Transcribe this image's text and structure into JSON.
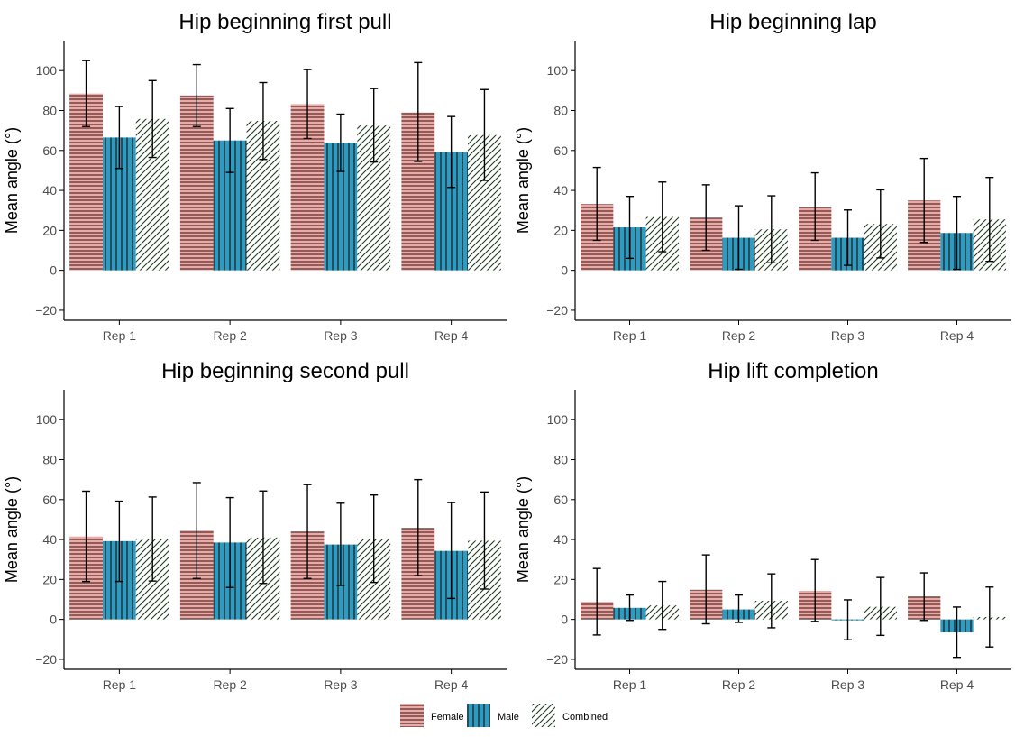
{
  "colors": {
    "female": "#f4a6a3",
    "male": "#2f9bc1",
    "combined": "#ffffff",
    "hatch": "#1a1a1a",
    "combined_hatch": "#1f3d1f",
    "axis": "#000000",
    "tick_label": "#4d4d4d"
  },
  "legend": {
    "placement": "bottom",
    "items": [
      {
        "key": "female",
        "label": "Female",
        "pattern": "horizontal-lines"
      },
      {
        "key": "male",
        "label": "Male",
        "pattern": "vertical-lines"
      },
      {
        "key": "combined",
        "label": "Combined",
        "pattern": "diagonal-lines"
      }
    ]
  },
  "chart_data": [
    {
      "type": "bar",
      "title": "Hip beginning first pull",
      "ylabel": "Mean angle (°)",
      "ylim": [
        -25,
        115
      ],
      "yticks": [
        -20,
        0,
        20,
        40,
        60,
        80,
        100
      ],
      "categories": [
        "Rep 1",
        "Rep 2",
        "Rep 3",
        "Rep 4"
      ],
      "series": [
        {
          "key": "female",
          "values": [
            88.5,
            87.5,
            83.2,
            79.0
          ],
          "error_low": [
            72,
            72,
            66,
            54.5
          ],
          "error_high": [
            105,
            103,
            100.5,
            104
          ]
        },
        {
          "key": "male",
          "values": [
            66.5,
            65.0,
            63.8,
            59.2
          ],
          "error_low": [
            51,
            49,
            49.5,
            41.5
          ],
          "error_high": [
            82,
            81,
            78.2,
            77
          ]
        },
        {
          "key": "combined",
          "values": [
            75.8,
            74.8,
            72.5,
            67.7
          ],
          "error_low": [
            56.5,
            55.5,
            54.2,
            45
          ],
          "error_high": [
            95,
            94,
            91,
            90.5
          ]
        }
      ]
    },
    {
      "type": "bar",
      "title": "Hip beginning lap",
      "ylabel": "Mean angle (°)",
      "ylim": [
        -25,
        115
      ],
      "yticks": [
        -20,
        0,
        20,
        40,
        60,
        80,
        100
      ],
      "categories": [
        "Rep 1",
        "Rep 2",
        "Rep 3",
        "Rep 4"
      ],
      "series": [
        {
          "key": "female",
          "values": [
            33.2,
            26.3,
            31.7,
            35.0
          ],
          "error_low": [
            15,
            10,
            15,
            14
          ],
          "error_high": [
            51.5,
            42.8,
            48.8,
            56
          ]
        },
        {
          "key": "male",
          "values": [
            21.5,
            16.3,
            16.3,
            18.7
          ],
          "error_low": [
            6,
            0.5,
            2.5,
            0.5
          ],
          "error_high": [
            37,
            32.3,
            30.2,
            37
          ]
        },
        {
          "key": "combined",
          "values": [
            26.7,
            20.5,
            23.2,
            25.5
          ],
          "error_low": [
            9.3,
            3.8,
            6.2,
            4.5
          ],
          "error_high": [
            44.2,
            37.3,
            40.3,
            46.5
          ]
        }
      ]
    },
    {
      "type": "bar",
      "title": "Hip beginning second pull",
      "ylabel": "Mean angle (°)",
      "ylim": [
        -25,
        115
      ],
      "yticks": [
        -20,
        0,
        20,
        40,
        60,
        80,
        100
      ],
      "categories": [
        "Rep 1",
        "Rep 2",
        "Rep 3",
        "Rep 4"
      ],
      "series": [
        {
          "key": "female",
          "values": [
            41.5,
            44.5,
            44.0,
            45.8
          ],
          "error_low": [
            19,
            20.5,
            20.5,
            22
          ],
          "error_high": [
            64.2,
            68.5,
            67.5,
            70
          ]
        },
        {
          "key": "male",
          "values": [
            39.2,
            38.5,
            37.5,
            34.3
          ],
          "error_low": [
            19,
            16,
            17,
            10.5
          ],
          "error_high": [
            59.2,
            61,
            58.2,
            58.5
          ]
        },
        {
          "key": "combined",
          "values": [
            40.3,
            41.0,
            40.3,
            39.4
          ],
          "error_low": [
            19.2,
            18,
            18.5,
            15.2
          ],
          "error_high": [
            61.3,
            64.3,
            62.3,
            63.8
          ]
        }
      ]
    },
    {
      "type": "bar",
      "title": "Hip lift completion",
      "ylabel": "Mean angle (°)",
      "ylim": [
        -25,
        115
      ],
      "yticks": [
        -20,
        0,
        20,
        40,
        60,
        80,
        100
      ],
      "categories": [
        "Rep 1",
        "Rep 2",
        "Rep 3",
        "Rep 4"
      ],
      "series": [
        {
          "key": "female",
          "values": [
            8.8,
            14.8,
            14.3,
            11.5
          ],
          "error_low": [
            -7.8,
            -2.2,
            -1,
            -0.5
          ],
          "error_high": [
            25.5,
            32.3,
            30,
            23.3
          ]
        },
        {
          "key": "male",
          "values": [
            5.8,
            5.0,
            -0.3,
            -6.5
          ],
          "error_low": [
            -0.5,
            -1.5,
            -10.2,
            -19
          ],
          "error_high": [
            12.2,
            12.2,
            9.8,
            6.2
          ]
        },
        {
          "key": "combined",
          "values": [
            7.0,
            9.3,
            6.3,
            1.2
          ],
          "error_low": [
            -5,
            -4.2,
            -8,
            -13.8
          ],
          "error_high": [
            19,
            22.8,
            21,
            16.2
          ]
        }
      ]
    }
  ]
}
